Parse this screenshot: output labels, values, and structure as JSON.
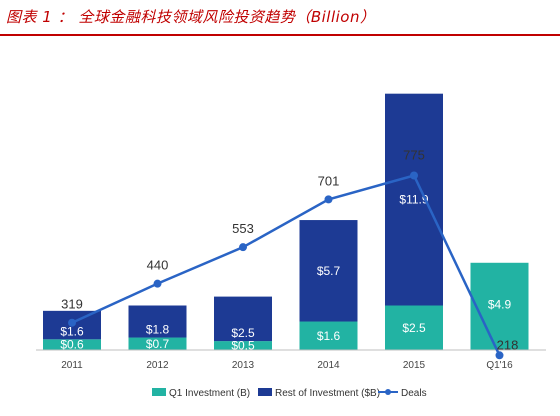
{
  "caption": {
    "text": "图表 1 ： 全球金融科技领域风险投资趋势（Billion）"
  },
  "chart_data": {
    "type": "bar",
    "categories": [
      "2011",
      "2012",
      "2013",
      "2014",
      "2015",
      "Q1'16"
    ],
    "series": [
      {
        "name": "Q1 Investment (B)",
        "values": [
          0.6,
          0.7,
          0.5,
          1.6,
          2.5,
          4.9
        ],
        "labels": [
          "$0.6",
          "$0.7",
          "$0.5",
          "$1.6",
          "$2.5",
          "$4.9"
        ],
        "color": "#22b3a3"
      },
      {
        "name": "Rest of Investment ($B)",
        "values": [
          1.6,
          1.8,
          2.5,
          5.7,
          11.9,
          null
        ],
        "labels": [
          "$1.6",
          "$1.8",
          "$2.5",
          "$5.7",
          "$11.9",
          ""
        ],
        "color": "#1d3a94"
      },
      {
        "name": "Deals",
        "values": [
          319,
          440,
          553,
          701,
          775,
          218
        ],
        "labels": [
          "319",
          "440",
          "553",
          "701",
          "775",
          "218"
        ],
        "color": "#2a64c5",
        "chart": "line"
      }
    ],
    "legend_placement": "bottom",
    "grid": false
  }
}
